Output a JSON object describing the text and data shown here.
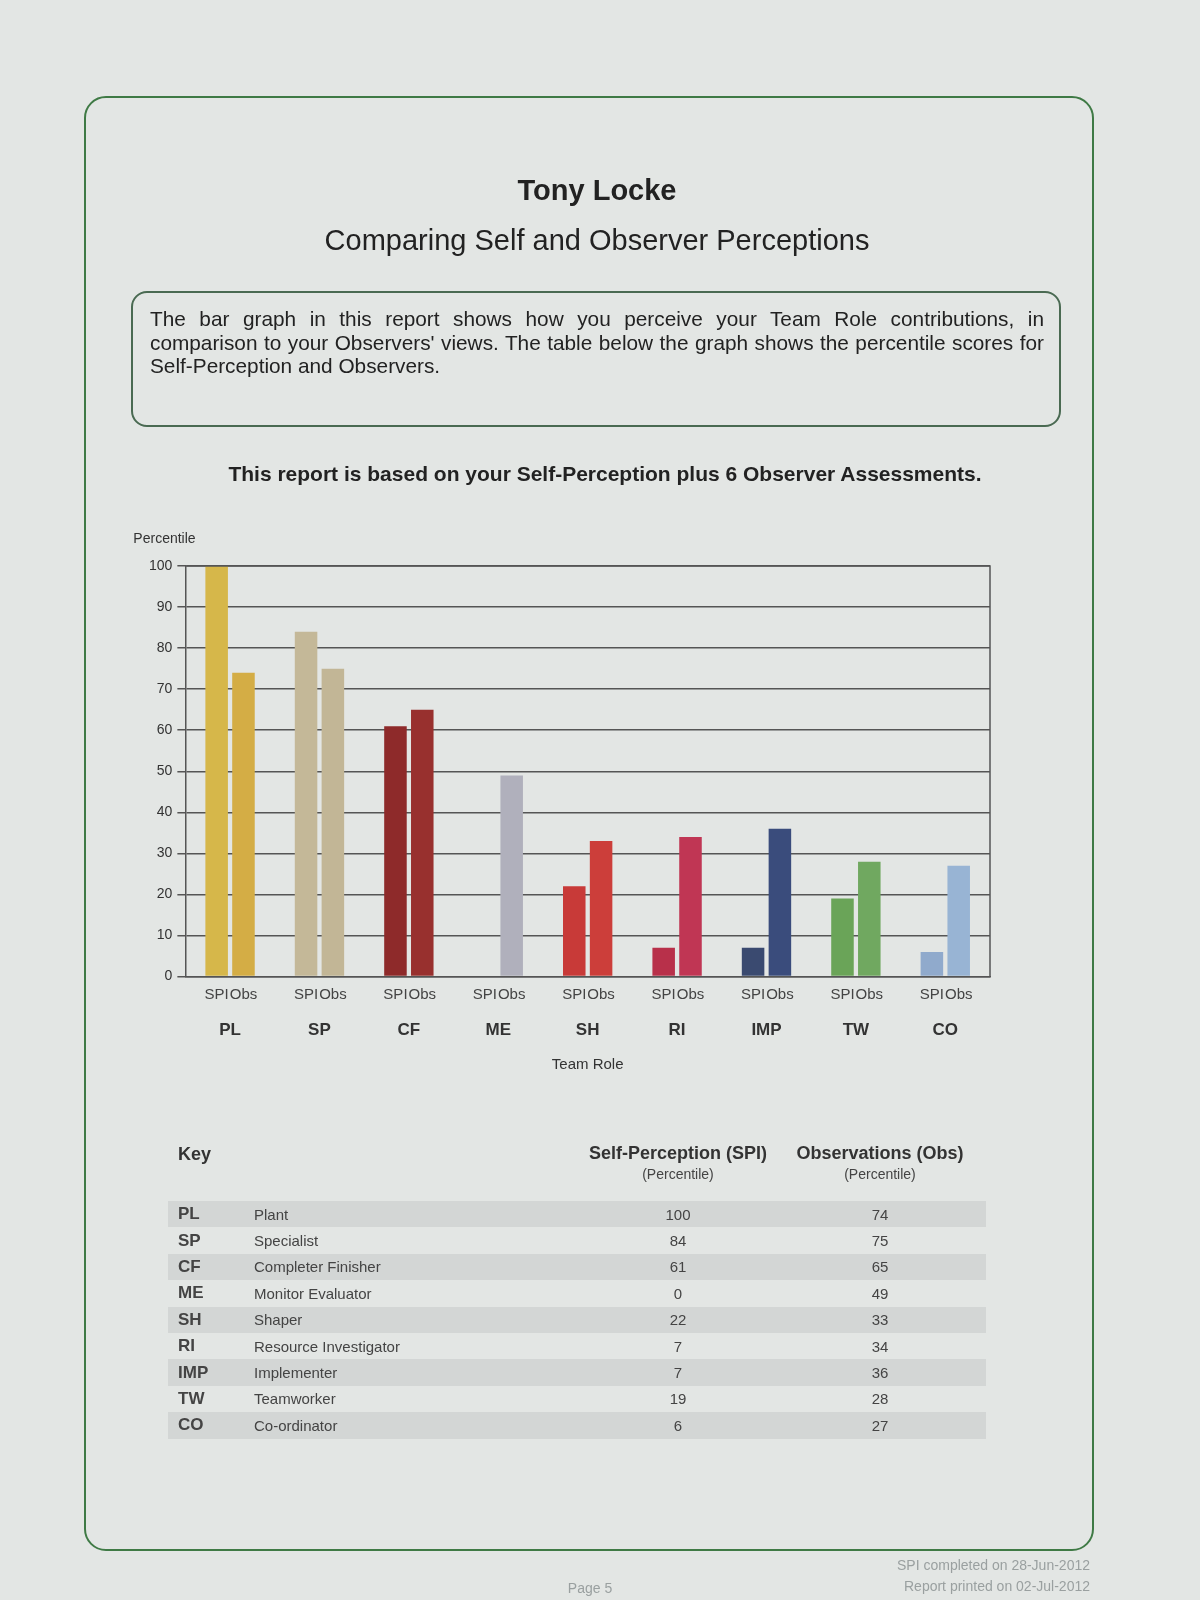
{
  "chart_data": [
    {
      "type": "bar",
      "title": "Tony Locke",
      "subtitle": "Comparing Self and Observer Perceptions",
      "ylabel": "Percentile",
      "xlabel": "Team Role",
      "categories": [
        "PL",
        "SP",
        "CF",
        "ME",
        "SH",
        "RI",
        "IMP",
        "TW",
        "CO"
      ],
      "series": [
        {
          "name": "SPI",
          "values": [
            100,
            84,
            61,
            0,
            22,
            7,
            7,
            19,
            6
          ],
          "colors": [
            "#d6b74a",
            "#c4b898",
            "#8e2a2a",
            "#a8a8b4",
            "#c83a38",
            "#b8304a",
            "#3a4a70",
            "#6aa458",
            "#90aacc"
          ]
        },
        {
          "name": "Obs",
          "values": [
            74,
            75,
            65,
            49,
            33,
            34,
            36,
            28,
            27
          ],
          "colors": [
            "#d4ad45",
            "#c2b696",
            "#98302e",
            "#b0b0bc",
            "#cc3e3a",
            "#c03654",
            "#3a4c7c",
            "#70a860",
            "#98b4d4"
          ]
        }
      ],
      "ylim": [
        0,
        100
      ],
      "yticks": [
        0,
        10,
        20,
        30,
        40,
        50,
        60,
        70,
        80,
        90,
        100
      ],
      "grid": "y",
      "annotations": [
        "The bar graph in this report shows how you perceive your Team Role contributions, in comparison to your Observers' views. The table below the graph shows the percentile scores for Self-Perception and Observers.",
        "This report is based on your Self-Perception plus 6 Observer Assessments."
      ]
    },
    {
      "type": "other",
      "categories": [
        "PL",
        "SP",
        "CF",
        "ME",
        "SH",
        "RI",
        "IMP",
        "TW",
        "CO"
      ],
      "annotations": [
        "Key",
        "Self-Perception (SPI)",
        "(Percentile)",
        "Observations (Obs)",
        "(Percentile)",
        "Plant",
        "100",
        "74",
        "Specialist",
        "84",
        "75",
        "Completer Finisher",
        "61",
        "65",
        "Monitor Evaluator",
        "0",
        "49",
        "Shaper",
        "22",
        "33",
        "Resource Investigator",
        "7",
        "34",
        "Implementer",
        "7",
        "36",
        "Teamworker",
        "19",
        "28",
        "Co-ordinator",
        "6",
        "27",
        "Page 5",
        "SPI completed on 28-Jun-2012",
        "Report printed on 02-Jul-2012"
      ]
    }
  ]
}
